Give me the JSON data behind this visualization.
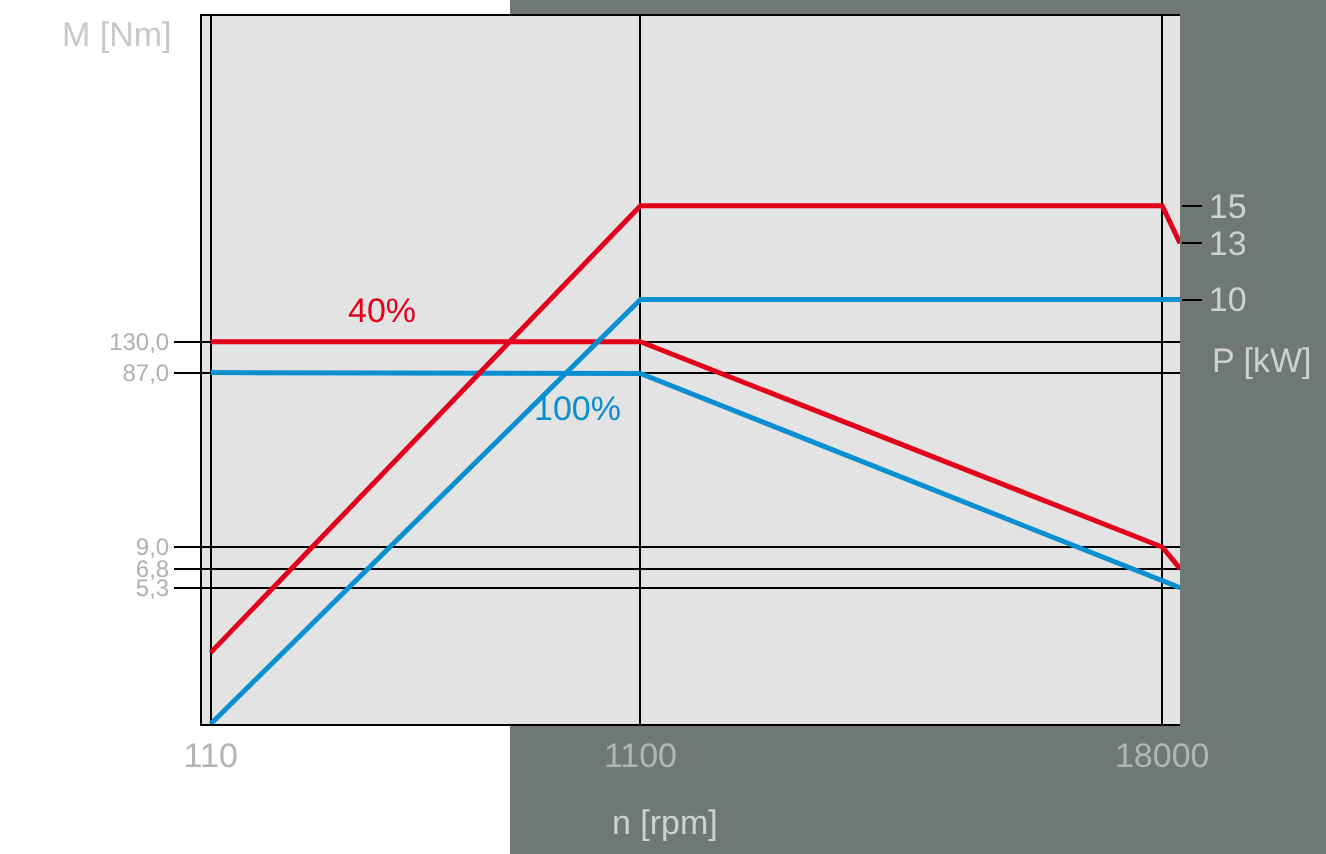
{
  "chart_data": {
    "type": "line",
    "xlabel": "n [rpm]",
    "ylabel": "M [Nm]",
    "y2label": "P [kW]",
    "log": "xy",
    "x": [
      110,
      1100,
      18000,
      19800
    ],
    "xlim": [
      105,
      19800
    ],
    "xticks": [
      110,
      1100,
      18000
    ],
    "ylim": [
      0.9,
      9000
    ],
    "yticks": [
      {
        "value": 130,
        "label": "130,0"
      },
      {
        "value": 87,
        "label": "87,0"
      },
      {
        "value": 9,
        "label": "9,0"
      },
      {
        "value": 6.8,
        "label": "6,8"
      },
      {
        "value": 5.3,
        "label": "5,3"
      }
    ],
    "y2lim": [
      -12.6,
      25.1
    ],
    "y2ticks": [
      15,
      13,
      10
    ],
    "grid": true,
    "marker": "none",
    "line_style": "solid",
    "series": [
      {
        "color": "#e2001a",
        "values": [
          130,
          130,
          9.0,
          6.8
        ]
      },
      {
        "color": "#0a8fd0",
        "values": [
          87,
          86,
          null,
          5.3
        ]
      },
      {
        "color": "#e2001a",
        "axis": "y2",
        "values": [
          -8.8,
          15,
          15,
          13
        ]
      },
      {
        "color": "#0a8fd0",
        "axis": "y2",
        "values": [
          -12.6,
          10,
          10,
          10
        ]
      }
    ],
    "annotations": [
      "40%",
      "100%"
    ]
  }
}
